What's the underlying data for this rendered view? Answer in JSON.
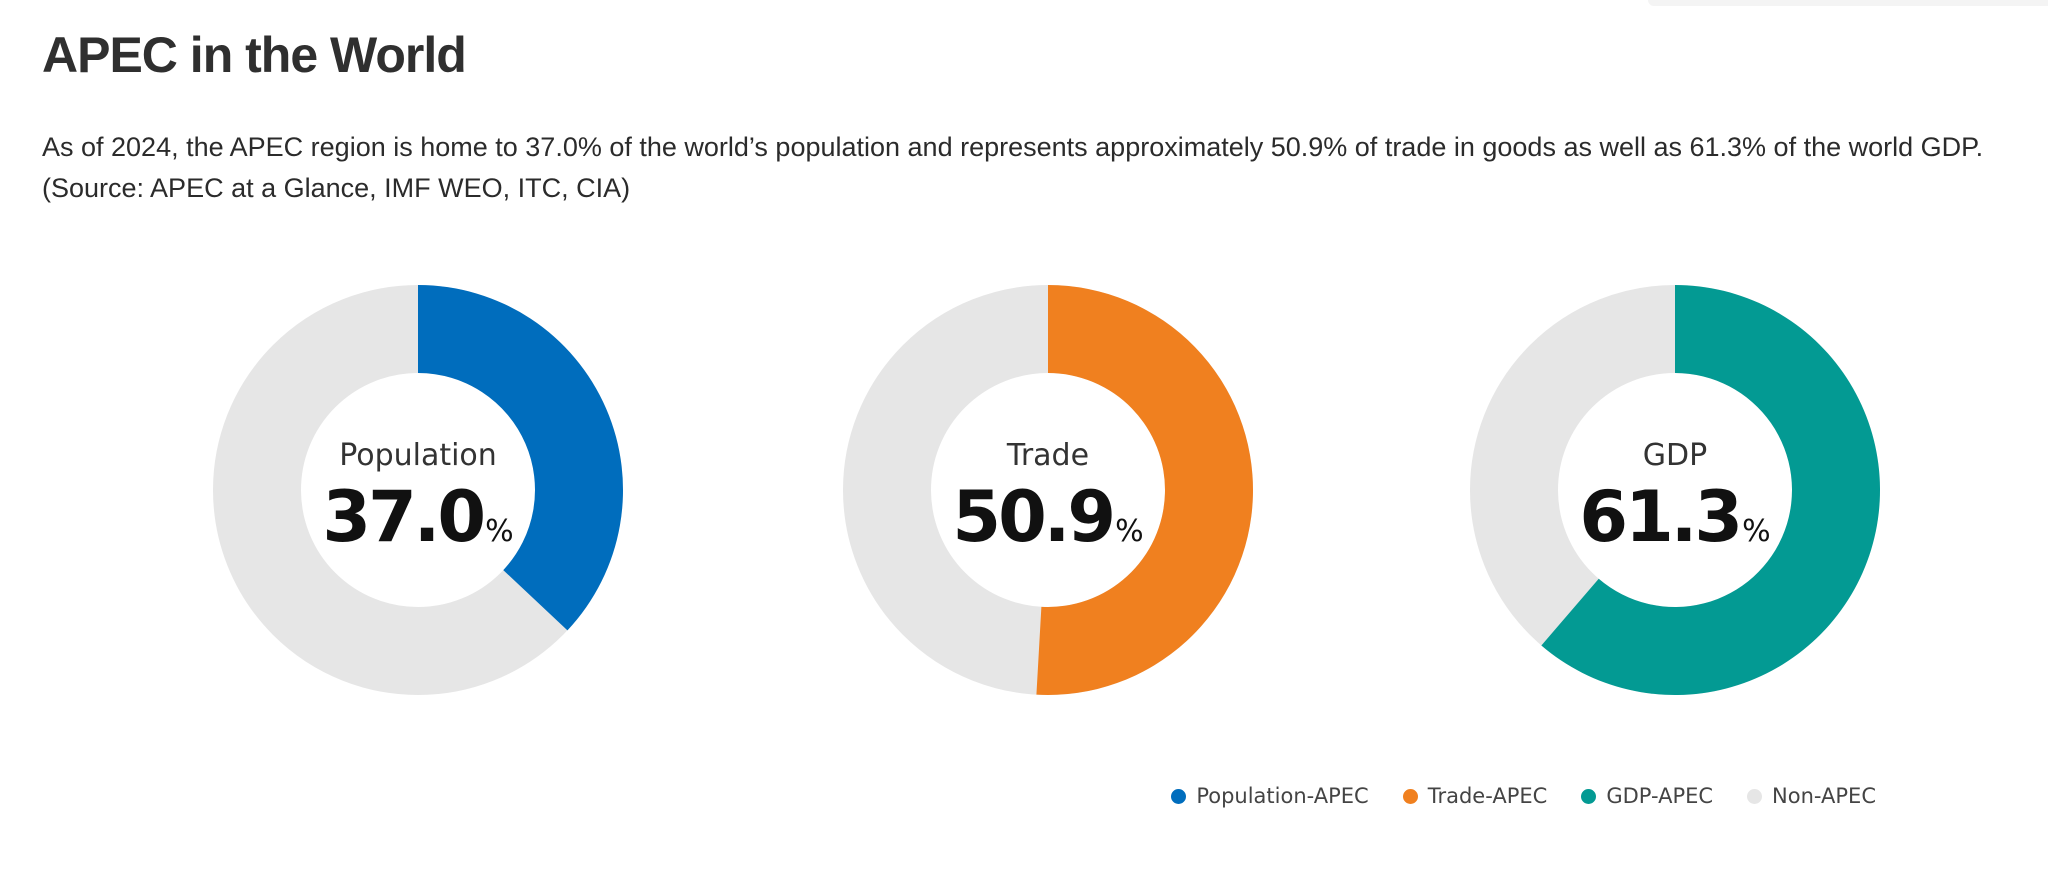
{
  "header": {
    "title": "APEC in the World"
  },
  "intro": {
    "line1": "As of 2024, the APEC region is home to 37.0% of the world’s population and represents approximately 50.9% of trade in goods as well as 61.3% of the world GDP.",
    "line2": "(Source: APEC at a Glance, IMF WEO, ITC, CIA)"
  },
  "colors": {
    "population": "#006dbd",
    "trade": "#f0801f",
    "gdp": "#039a93",
    "non_apec": "#e6e6e6"
  },
  "chart_data": [
    {
      "type": "pie",
      "title": "Population",
      "value": 37.0,
      "value_text": "37.0",
      "unit": "%",
      "slices": [
        {
          "name": "Population-APEC",
          "value": 37.0
        },
        {
          "name": "Non-APEC",
          "value": 63.0
        }
      ]
    },
    {
      "type": "pie",
      "title": "Trade",
      "value": 50.9,
      "value_text": "50.9",
      "unit": "%",
      "slices": [
        {
          "name": "Trade-APEC",
          "value": 50.9
        },
        {
          "name": "Non-APEC",
          "value": 49.1
        }
      ]
    },
    {
      "type": "pie",
      "title": "GDP",
      "value": 61.3,
      "value_text": "61.3",
      "unit": "%",
      "slices": [
        {
          "name": "GDP-APEC",
          "value": 61.3
        },
        {
          "name": "Non-APEC",
          "value": 38.7
        }
      ]
    }
  ],
  "legend": {
    "placement": "bottom-right",
    "items": [
      {
        "label": "Population-APEC",
        "color": "#006dbd"
      },
      {
        "label": "Trade-APEC",
        "color": "#f0801f"
      },
      {
        "label": "GDP-APEC",
        "color": "#039a93"
      },
      {
        "label": "Non-APEC",
        "color": "#e6e6e6"
      }
    ]
  }
}
